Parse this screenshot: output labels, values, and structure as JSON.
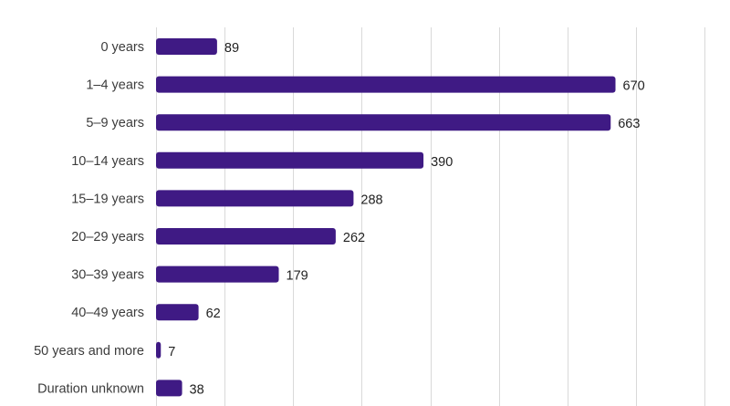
{
  "chart_data": {
    "type": "bar",
    "orientation": "horizontal",
    "title": "",
    "xlabel": "",
    "ylabel": "",
    "categories": [
      "0 years",
      "1–4 years",
      "5–9 years",
      "10–14 years",
      "15–19 years",
      "20–29 years",
      "30–39 years",
      "40–49 years",
      "50 years and more",
      "Duration unknown"
    ],
    "values": [
      89,
      670,
      663,
      390,
      288,
      262,
      179,
      62,
      7,
      38
    ],
    "xlim": [
      0,
      800
    ],
    "grid": true,
    "legend": "none",
    "colors": {
      "bar": "#3f1a84",
      "grid": "#d9d9d9"
    }
  }
}
